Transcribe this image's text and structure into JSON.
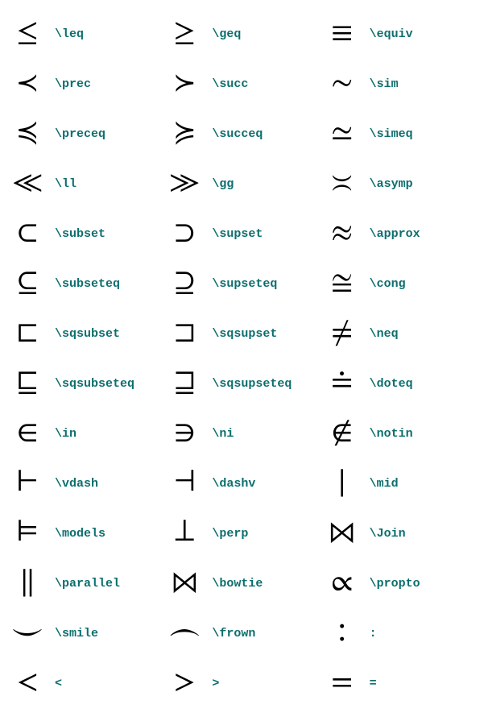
{
  "colors": {
    "symbol_color": "#000000",
    "command_color": "#0d6e6e",
    "background": "#ffffff"
  },
  "typography": {
    "symbol_fontsize": 38,
    "command_fontsize": 15,
    "command_fontfamily": "Courier New",
    "command_fontweight": "bold"
  },
  "layout": {
    "columns": 3,
    "rows": 14
  },
  "symbols": [
    {
      "glyph": "≤",
      "cmd": "\\leq"
    },
    {
      "glyph": "≥",
      "cmd": "\\geq"
    },
    {
      "glyph": "≡",
      "cmd": "\\equiv"
    },
    {
      "glyph": "≺",
      "cmd": "\\prec"
    },
    {
      "glyph": "≻",
      "cmd": "\\succ"
    },
    {
      "glyph": "∼",
      "cmd": "\\sim"
    },
    {
      "glyph": "≼",
      "cmd": "\\preceq"
    },
    {
      "glyph": "≽",
      "cmd": "\\succeq"
    },
    {
      "glyph": "≃",
      "cmd": "\\simeq"
    },
    {
      "glyph": "≪",
      "cmd": "\\ll"
    },
    {
      "glyph": "≫",
      "cmd": "\\gg"
    },
    {
      "glyph": "≍",
      "cmd": "\\asymp"
    },
    {
      "glyph": "⊂",
      "cmd": "\\subset"
    },
    {
      "glyph": "⊃",
      "cmd": "\\supset"
    },
    {
      "glyph": "≈",
      "cmd": "\\approx"
    },
    {
      "glyph": "⊆",
      "cmd": "\\subseteq"
    },
    {
      "glyph": "⊇",
      "cmd": "\\supseteq"
    },
    {
      "glyph": "≅",
      "cmd": "\\cong"
    },
    {
      "glyph": "⊏",
      "cmd": "\\sqsubset"
    },
    {
      "glyph": "⊐",
      "cmd": "\\sqsupset"
    },
    {
      "glyph": "≠",
      "cmd": "\\neq"
    },
    {
      "glyph": "⊑",
      "cmd": "\\sqsubseteq"
    },
    {
      "glyph": "⊒",
      "cmd": "\\sqsupseteq"
    },
    {
      "glyph": "≐",
      "cmd": "\\doteq"
    },
    {
      "glyph": "∈",
      "cmd": "\\in"
    },
    {
      "glyph": "∋",
      "cmd": "\\ni"
    },
    {
      "glyph": "∉",
      "cmd": "\\notin"
    },
    {
      "glyph": "⊢",
      "cmd": "\\vdash"
    },
    {
      "glyph": "⊣",
      "cmd": "\\dashv"
    },
    {
      "glyph": "∣",
      "cmd": "\\mid"
    },
    {
      "glyph": "⊨",
      "cmd": "\\models"
    },
    {
      "glyph": "⊥",
      "cmd": "\\perp"
    },
    {
      "glyph": "⋈",
      "cmd": "\\Join"
    },
    {
      "glyph": "∥",
      "cmd": "\\parallel"
    },
    {
      "glyph": "⋈",
      "cmd": "\\bowtie"
    },
    {
      "glyph": "∝",
      "cmd": "\\propto"
    },
    {
      "glyph": "⌣",
      "cmd": "\\smile"
    },
    {
      "glyph": "⌢",
      "cmd": "\\frown"
    },
    {
      "glyph": "∶",
      "cmd": ":"
    },
    {
      "glyph": "<",
      "cmd": "<"
    },
    {
      "glyph": ">",
      "cmd": ">"
    },
    {
      "glyph": "=",
      "cmd": "="
    }
  ]
}
